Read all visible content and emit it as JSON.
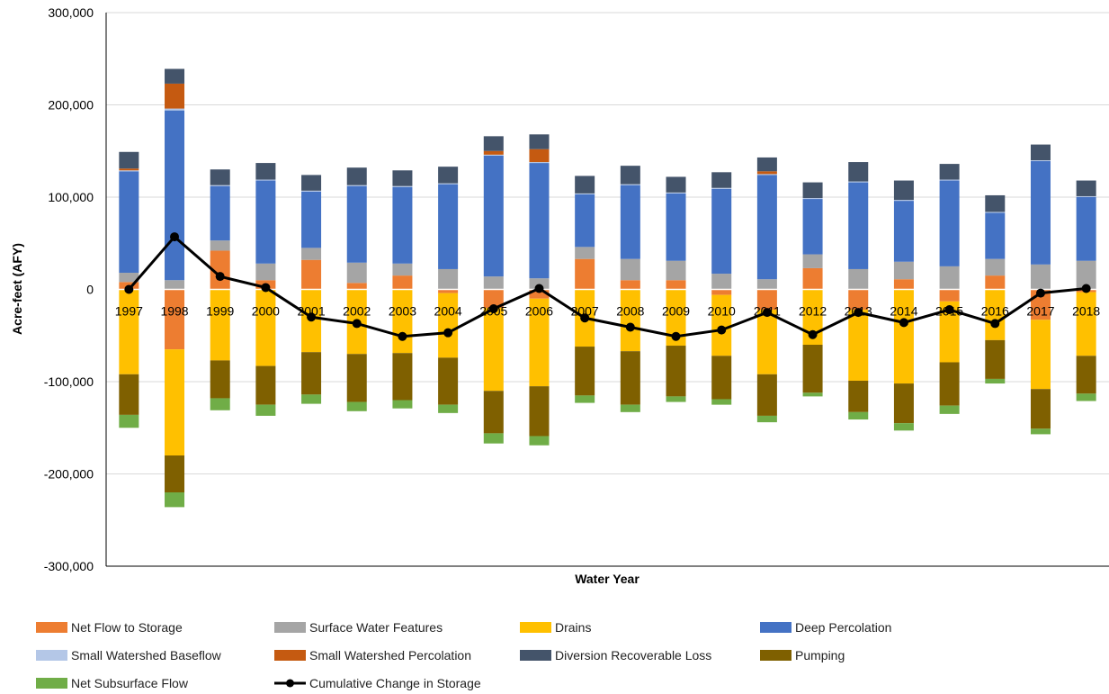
{
  "chart_data": {
    "type": "bar",
    "stacked": true,
    "title": "",
    "xlabel": "Water Year",
    "ylabel": "Acre-feet (AFY)",
    "ylim": [
      -300000,
      300000
    ],
    "yticks": [
      300000,
      200000,
      100000,
      0,
      -100000,
      -200000,
      -300000
    ],
    "ytick_labels": [
      "300,000",
      "200,000",
      "100,000",
      "0",
      "-100,000",
      "-200,000",
      "-300,000"
    ],
    "grid": true,
    "legend_position": "bottom",
    "categories": [
      "1997",
      "1998",
      "1999",
      "2000",
      "2001",
      "2002",
      "2003",
      "2004",
      "2005",
      "2006",
      "2007",
      "2008",
      "2009",
      "2010",
      "2011",
      "2012",
      "2013",
      "2014",
      "2015",
      "2016",
      "2017",
      "2018"
    ],
    "series": [
      {
        "name": "Net Flow to Storage",
        "color": "#ED7D31",
        "kind": "bar",
        "values": [
          8000,
          -65000,
          42000,
          10000,
          32000,
          7000,
          15000,
          -4000,
          -20000,
          -10000,
          33000,
          10000,
          10000,
          -6000,
          -22000,
          23000,
          -22000,
          11000,
          -13000,
          15000,
          -33000,
          -3000
        ]
      },
      {
        "name": "Surface Water Features",
        "color": "#A5A5A5",
        "kind": "bar",
        "values": [
          10000,
          10000,
          11000,
          18000,
          13000,
          22000,
          13000,
          22000,
          14000,
          12000,
          13000,
          23000,
          21000,
          17000,
          11000,
          15000,
          22000,
          19000,
          25000,
          18000,
          27000,
          31000
        ]
      },
      {
        "name": "Drains",
        "color": "#FFC000",
        "kind": "bar",
        "values": [
          -92000,
          -115000,
          -77000,
          -83000,
          -68000,
          -70000,
          -69000,
          -70000,
          -90000,
          -95000,
          -62000,
          -67000,
          -61000,
          -66000,
          -70000,
          -60000,
          -77000,
          -102000,
          -66000,
          -55000,
          -75000,
          -69000
        ]
      },
      {
        "name": "Deep Percolation",
        "color": "#4472C4",
        "kind": "bar",
        "values": [
          110000,
          184000,
          59000,
          90000,
          61000,
          83000,
          83000,
          92000,
          131000,
          125000,
          57000,
          80000,
          73000,
          92000,
          113000,
          60000,
          94000,
          66000,
          93000,
          50000,
          112000,
          69000
        ]
      },
      {
        "name": "Small Watershed Baseflow",
        "color": "#B4C7E7",
        "kind": "bar",
        "values": [
          1000,
          2000,
          1000,
          1000,
          1000,
          1000,
          1000,
          1000,
          1000,
          1000,
          1000,
          1000,
          1000,
          1000,
          1000,
          1000,
          1000,
          1000,
          1000,
          1000,
          1000,
          1000
        ]
      },
      {
        "name": "Small Watershed Percolation",
        "color": "#C55A11",
        "kind": "bar",
        "values": [
          2000,
          27000,
          0,
          0,
          0,
          0,
          0,
          0,
          4000,
          14000,
          0,
          0,
          0,
          0,
          3000,
          0,
          0,
          0,
          0,
          0,
          0,
          0
        ]
      },
      {
        "name": "Diversion Recoverable Loss",
        "color": "#44546A",
        "kind": "bar",
        "values": [
          18000,
          16000,
          17000,
          18000,
          17000,
          19000,
          17000,
          18000,
          16000,
          16000,
          19000,
          20000,
          17000,
          17000,
          15000,
          17000,
          21000,
          21000,
          17000,
          18000,
          17000,
          17000
        ]
      },
      {
        "name": "Pumping",
        "color": "#7F6000",
        "kind": "bar",
        "values": [
          -44000,
          -40000,
          -41000,
          -42000,
          -46000,
          -52000,
          -51000,
          -51000,
          -46000,
          -54000,
          -53000,
          -58000,
          -55000,
          -47000,
          -45000,
          -52000,
          -34000,
          -43000,
          -47000,
          -42000,
          -43000,
          -41000
        ]
      },
      {
        "name": "Net Subsurface Flow",
        "color": "#70AD47",
        "kind": "bar",
        "values": [
          -14000,
          -16000,
          -13000,
          -12000,
          -10000,
          -10000,
          -9000,
          -9000,
          -11000,
          -10000,
          -8000,
          -8000,
          -6000,
          -6000,
          -7000,
          -4000,
          -8000,
          -8000,
          -9000,
          -5000,
          -6000,
          -8000
        ]
      },
      {
        "name": "Cumulative Change in Storage",
        "color": "#000000",
        "kind": "line",
        "values": [
          0,
          57000,
          14000,
          2000,
          -30000,
          -37000,
          -51000,
          -47000,
          -21000,
          1000,
          -31000,
          -41000,
          -51000,
          -44000,
          -25000,
          -49000,
          -25000,
          -36000,
          -22000,
          -37000,
          -4000,
          1000
        ]
      }
    ]
  }
}
